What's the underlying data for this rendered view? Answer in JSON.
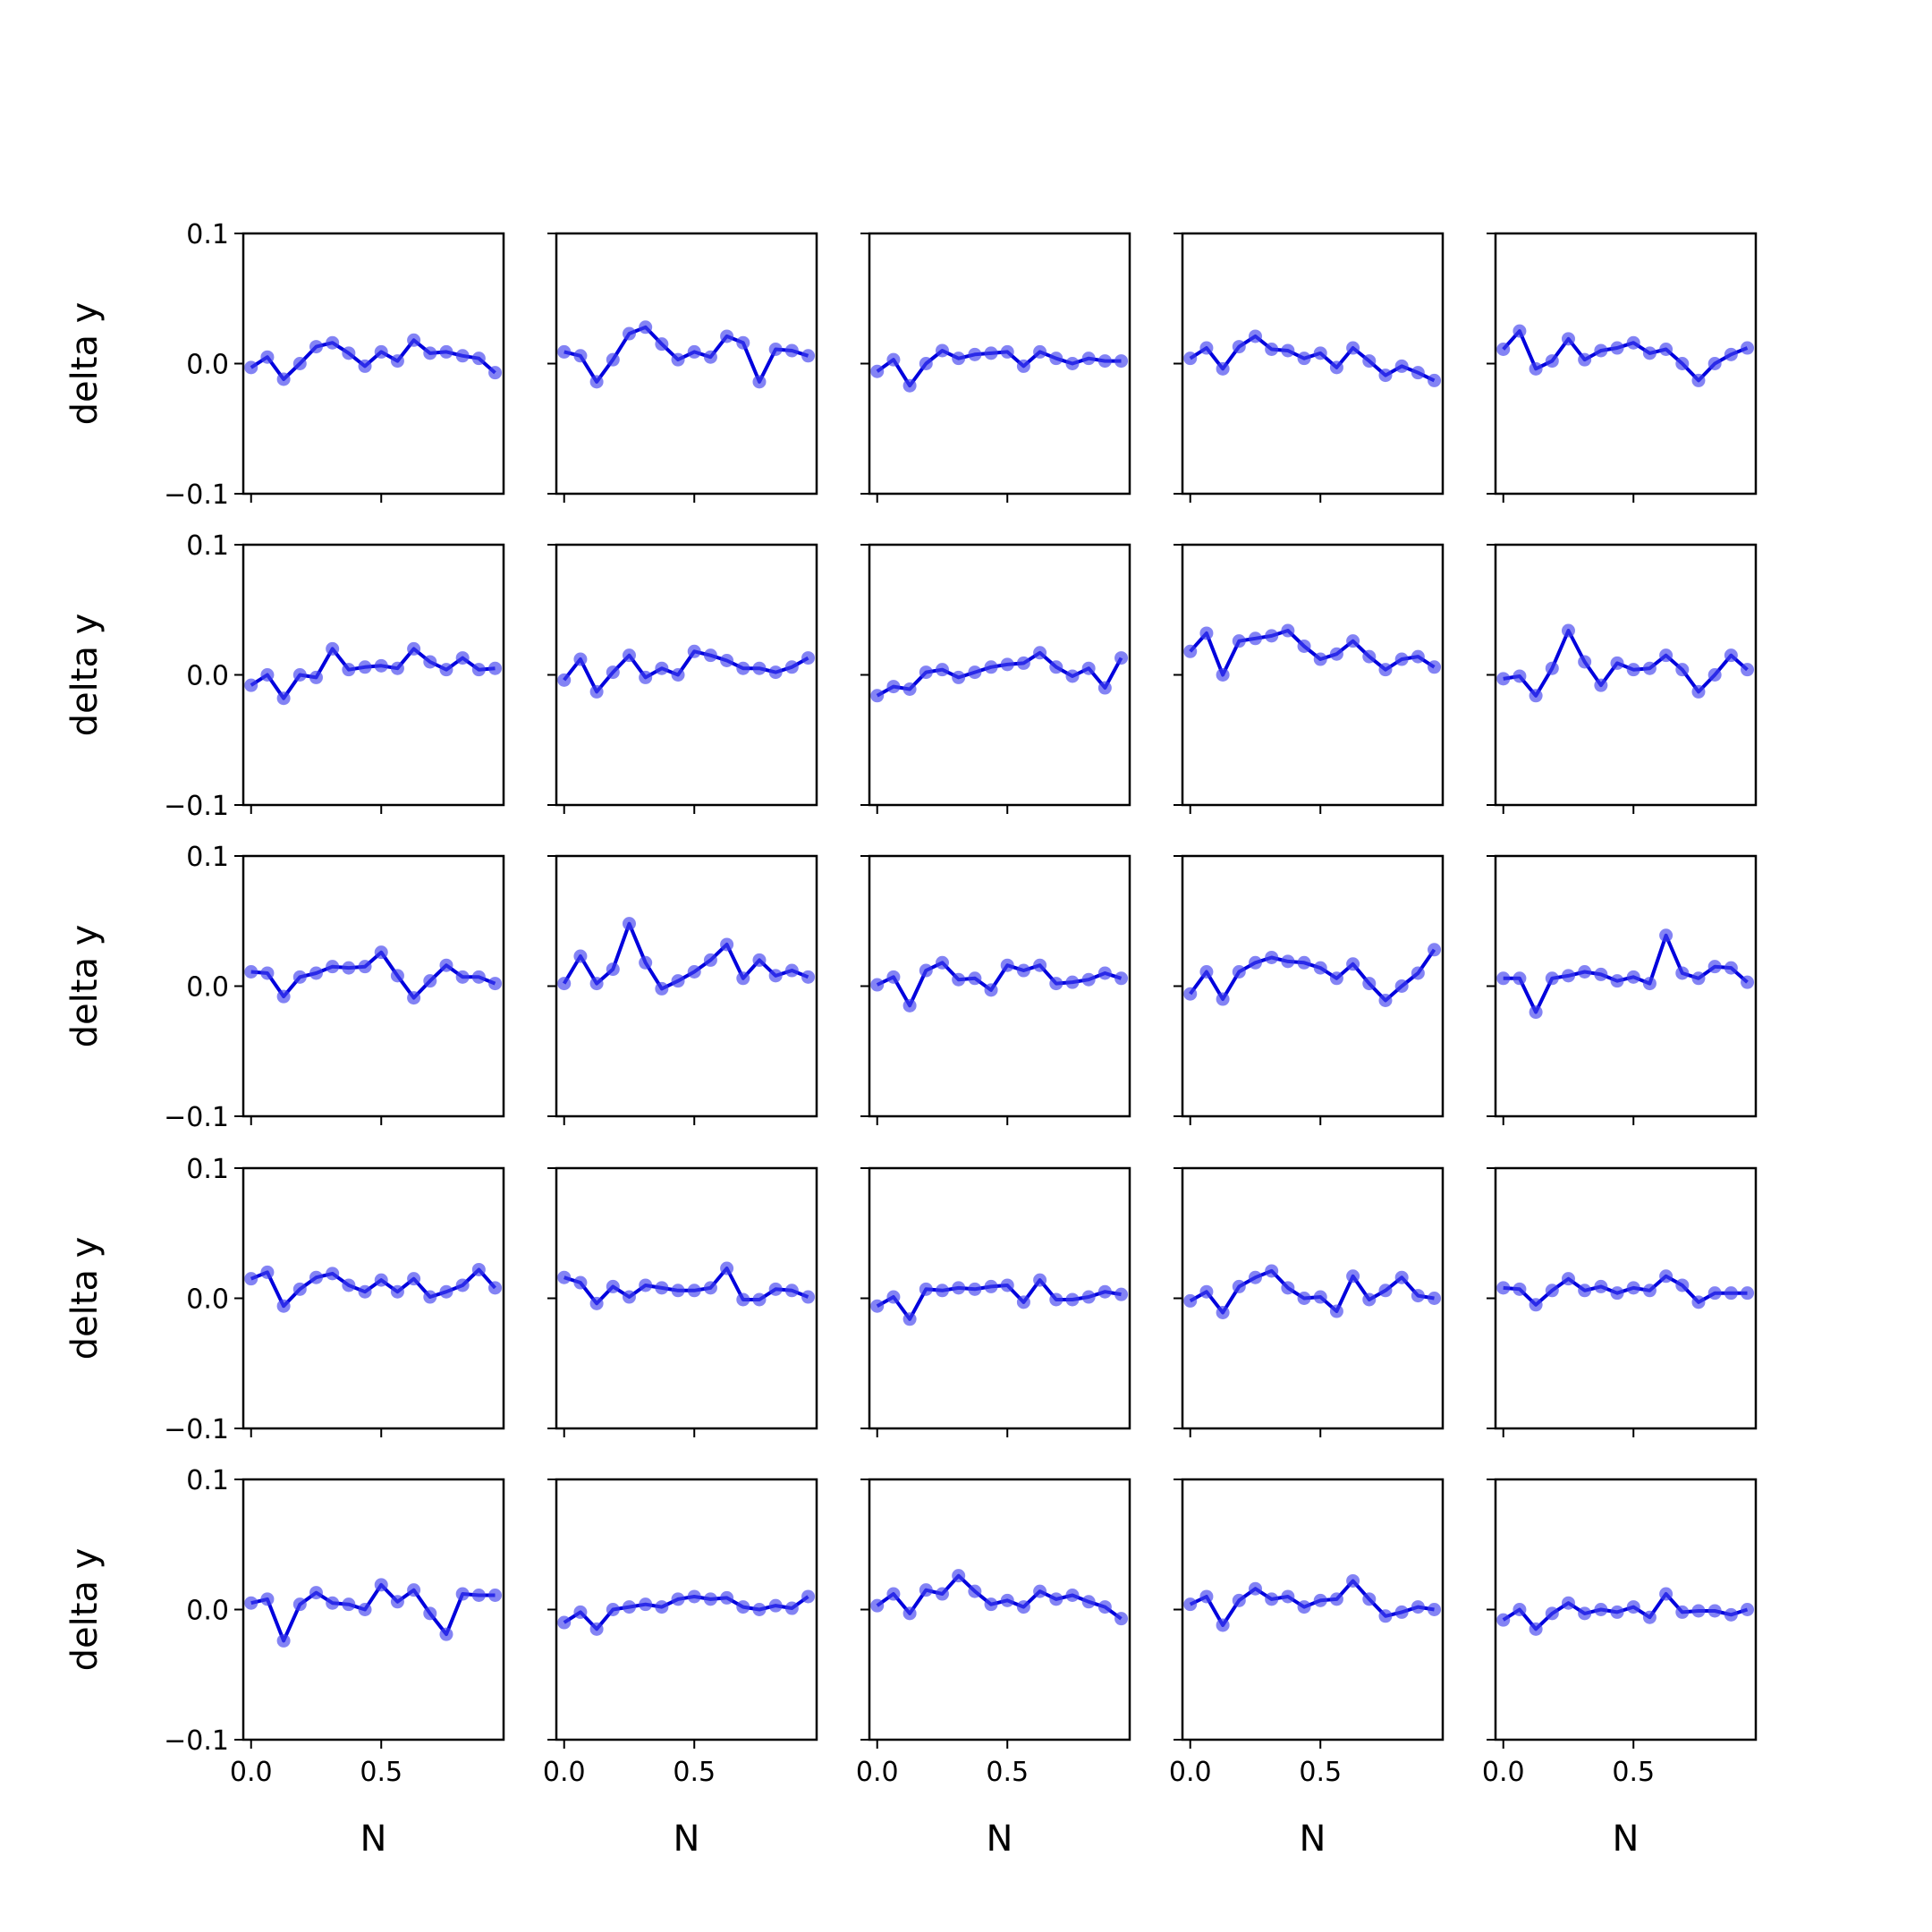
{
  "chart_data": {
    "type": "line",
    "layout": {
      "rows": 5,
      "cols": 5,
      "sharex": true,
      "sharey": true
    },
    "x": [
      0.0,
      0.0625,
      0.125,
      0.1875,
      0.25,
      0.3125,
      0.375,
      0.4375,
      0.5,
      0.5625,
      0.625,
      0.6875,
      0.75,
      0.8125,
      0.875,
      0.9375
    ],
    "xlim": [
      -0.03,
      0.97
    ],
    "ylim": [
      -0.1,
      0.1
    ],
    "xticks": [
      0.0,
      0.5
    ],
    "xtick_labels": [
      "0.0",
      "0.5"
    ],
    "yticks": [
      0.1,
      0.0,
      -0.1
    ],
    "ytick_labels": [
      "0.1",
      "0.0",
      "−0.1"
    ],
    "xlabel": "N",
    "ylabel": "delta y",
    "grid": false,
    "colors": {
      "line": "#0000dd",
      "marker": "#4040ee"
    },
    "subplots": [
      {
        "values": [
          -0.003,
          0.005,
          -0.012,
          0.0,
          0.013,
          0.016,
          0.008,
          -0.002,
          0.009,
          0.002,
          0.018,
          0.008,
          0.009,
          0.006,
          0.004,
          -0.007
        ]
      },
      {
        "values": [
          0.009,
          0.006,
          -0.014,
          0.003,
          0.023,
          0.028,
          0.015,
          0.003,
          0.009,
          0.005,
          0.021,
          0.016,
          -0.014,
          0.011,
          0.01,
          0.006
        ]
      },
      {
        "values": [
          -0.006,
          0.003,
          -0.017,
          0.0,
          0.01,
          0.004,
          0.007,
          0.008,
          0.009,
          -0.002,
          0.009,
          0.004,
          0.0,
          0.004,
          0.002,
          0.002
        ]
      },
      {
        "values": [
          0.004,
          0.012,
          -0.004,
          0.013,
          0.021,
          0.011,
          0.01,
          0.004,
          0.008,
          -0.003,
          0.012,
          0.002,
          -0.009,
          -0.002,
          -0.007,
          -0.013
        ]
      },
      {
        "values": [
          0.011,
          0.025,
          -0.004,
          0.002,
          0.019,
          0.003,
          0.01,
          0.012,
          0.016,
          0.008,
          0.011,
          0.0,
          -0.013,
          0.0,
          0.007,
          0.012
        ]
      },
      {
        "values": [
          -0.008,
          0.0,
          -0.018,
          0.0,
          -0.002,
          0.02,
          0.004,
          0.006,
          0.007,
          0.005,
          0.02,
          0.01,
          0.004,
          0.013,
          0.004,
          0.005
        ]
      },
      {
        "values": [
          -0.004,
          0.012,
          -0.013,
          0.002,
          0.015,
          -0.002,
          0.005,
          0.0,
          0.018,
          0.015,
          0.011,
          0.005,
          0.005,
          0.002,
          0.006,
          0.013
        ]
      },
      {
        "values": [
          -0.016,
          -0.009,
          -0.011,
          0.002,
          0.004,
          -0.002,
          0.002,
          0.006,
          0.008,
          0.009,
          0.017,
          0.006,
          -0.001,
          0.005,
          -0.01,
          0.013
        ]
      },
      {
        "values": [
          0.018,
          0.032,
          0.0,
          0.026,
          0.028,
          0.03,
          0.034,
          0.022,
          0.012,
          0.016,
          0.026,
          0.014,
          0.004,
          0.012,
          0.014,
          0.006
        ]
      },
      {
        "values": [
          -0.003,
          -0.001,
          -0.016,
          0.005,
          0.034,
          0.01,
          -0.008,
          0.009,
          0.004,
          0.005,
          0.015,
          0.004,
          -0.013,
          0.0,
          0.015,
          0.004
        ]
      },
      {
        "values": [
          0.011,
          0.01,
          -0.008,
          0.007,
          0.01,
          0.015,
          0.014,
          0.015,
          0.026,
          0.008,
          -0.009,
          0.004,
          0.016,
          0.007,
          0.007,
          0.002
        ]
      },
      {
        "values": [
          0.002,
          0.023,
          0.002,
          0.013,
          0.048,
          0.018,
          -0.002,
          0.004,
          0.011,
          0.02,
          0.032,
          0.006,
          0.02,
          0.008,
          0.012,
          0.007
        ]
      },
      {
        "values": [
          0.001,
          0.007,
          -0.015,
          0.012,
          0.018,
          0.005,
          0.006,
          -0.003,
          0.016,
          0.012,
          0.016,
          0.002,
          0.003,
          0.005,
          0.01,
          0.006
        ]
      },
      {
        "values": [
          -0.006,
          0.011,
          -0.01,
          0.011,
          0.018,
          0.022,
          0.019,
          0.018,
          0.014,
          0.006,
          0.017,
          0.002,
          -0.011,
          0.0,
          0.01,
          0.028
        ]
      },
      {
        "values": [
          0.006,
          0.006,
          -0.02,
          0.006,
          0.008,
          0.011,
          0.009,
          0.004,
          0.007,
          0.002,
          0.039,
          0.01,
          0.006,
          0.015,
          0.014,
          0.003
        ]
      },
      {
        "values": [
          0.015,
          0.02,
          -0.006,
          0.007,
          0.016,
          0.019,
          0.01,
          0.005,
          0.014,
          0.005,
          0.015,
          0.001,
          0.005,
          0.01,
          0.022,
          0.008
        ]
      },
      {
        "values": [
          0.016,
          0.012,
          -0.004,
          0.009,
          0.001,
          0.01,
          0.008,
          0.006,
          0.006,
          0.008,
          0.023,
          -0.001,
          -0.001,
          0.007,
          0.006,
          0.001
        ]
      },
      {
        "values": [
          -0.006,
          0.001,
          -0.016,
          0.007,
          0.006,
          0.008,
          0.007,
          0.009,
          0.01,
          -0.003,
          0.014,
          -0.001,
          -0.001,
          0.001,
          0.005,
          0.003
        ]
      },
      {
        "values": [
          -0.002,
          0.005,
          -0.011,
          0.009,
          0.016,
          0.021,
          0.008,
          0.0,
          0.001,
          -0.01,
          0.017,
          -0.001,
          0.006,
          0.016,
          0.002,
          0.0
        ]
      },
      {
        "values": [
          0.008,
          0.007,
          -0.005,
          0.006,
          0.015,
          0.006,
          0.009,
          0.004,
          0.008,
          0.006,
          0.017,
          0.01,
          -0.003,
          0.004,
          0.004,
          0.004
        ]
      },
      {
        "values": [
          0.005,
          0.008,
          -0.024,
          0.004,
          0.013,
          0.005,
          0.004,
          0.0,
          0.019,
          0.006,
          0.015,
          -0.003,
          -0.019,
          0.012,
          0.011,
          0.011
        ]
      },
      {
        "values": [
          -0.01,
          -0.002,
          -0.015,
          0.0,
          0.002,
          0.004,
          0.002,
          0.008,
          0.01,
          0.008,
          0.009,
          0.002,
          0.0,
          0.003,
          0.001,
          0.01
        ]
      },
      {
        "values": [
          0.003,
          0.012,
          -0.003,
          0.015,
          0.012,
          0.026,
          0.014,
          0.004,
          0.007,
          0.002,
          0.014,
          0.008,
          0.011,
          0.006,
          0.002,
          -0.007
        ]
      },
      {
        "values": [
          0.004,
          0.01,
          -0.012,
          0.007,
          0.016,
          0.008,
          0.01,
          0.002,
          0.007,
          0.008,
          0.022,
          0.008,
          -0.005,
          -0.002,
          0.002,
          0.0
        ]
      },
      {
        "values": [
          -0.008,
          0.0,
          -0.015,
          -0.003,
          0.005,
          -0.003,
          0.0,
          -0.002,
          0.002,
          -0.006,
          0.012,
          -0.002,
          -0.001,
          -0.001,
          -0.004,
          0.0
        ]
      }
    ]
  }
}
